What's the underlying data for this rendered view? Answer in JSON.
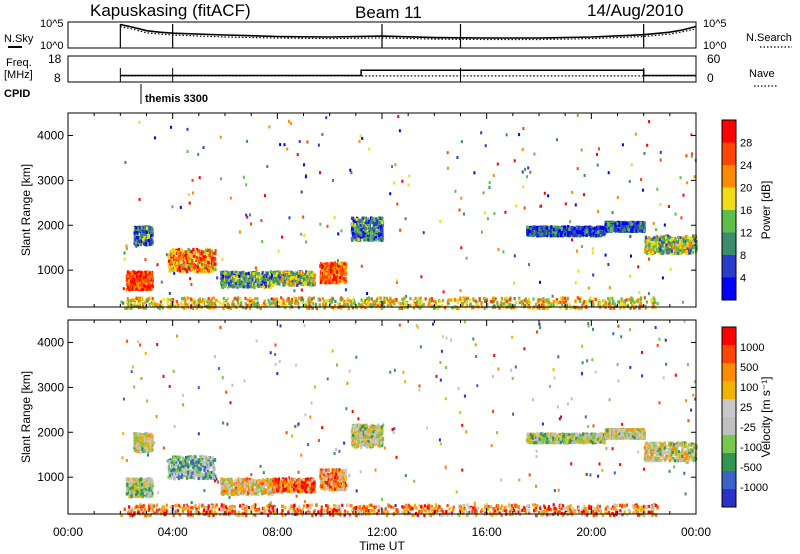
{
  "header": {
    "station": "Kapuskasing (fitACF)",
    "beam": "Beam 11",
    "date": "14/Aug/2010"
  },
  "panel_labels": {
    "nsky": "N.Sky",
    "freq_line1": "Freq.",
    "freq_line2": "[MHz]",
    "cpid": "CPID",
    "nsearch": "N.Search",
    "nave": "Nave",
    "cpid_value": "themis 3300"
  },
  "colors": {
    "power_scale": [
      "#0000ff",
      "#2d3cc8",
      "#3c8c6e",
      "#5fbe4b",
      "#f0dc14",
      "#ff8c00",
      "#ff4600",
      "#ff0000"
    ],
    "velocity_scale": [
      "#2832c8",
      "#3c64c8",
      "#329650",
      "#78c850",
      "#c0c0c0",
      "#c8c8c8",
      "#f0b400",
      "#ff8c00",
      "#ff4600",
      "#ff0000"
    ]
  },
  "chart_data": [
    {
      "type": "line",
      "name": "nsky-nsearch",
      "xlabel": "",
      "ylabel": "N.Sky",
      "ylim": [
        1,
        100000
      ],
      "log_scale": true,
      "yticks": [
        "10^5",
        "10^0"
      ],
      "right_label": "N.Search",
      "x_hours": [
        2.0,
        2.5,
        3.0,
        3.5,
        4.0,
        6.0,
        8.0,
        10.0,
        12.0,
        14.0,
        16.0,
        18.0,
        20.0,
        22.0,
        23.0,
        23.5,
        24.0
      ],
      "series": [
        {
          "name": "N.Sky",
          "values": [
            80000,
            20000,
            4000,
            2000,
            1200,
            500,
            250,
            200,
            300,
            150,
            120,
            120,
            200,
            600,
            2000,
            6000,
            30000
          ]
        },
        {
          "name": "N.Search",
          "values": [
            30000,
            8000,
            1500,
            800,
            500,
            200,
            120,
            90,
            130,
            70,
            60,
            60,
            90,
            250,
            800,
            2500,
            10000
          ]
        }
      ]
    },
    {
      "type": "line",
      "name": "freq-nave",
      "ylabel_left": "Freq. [MHz]",
      "yticks_left": [
        "18",
        "8"
      ],
      "yticks_right": [
        "60",
        "0"
      ],
      "right_label": "Nave",
      "series": [
        {
          "name": "Freq",
          "x_hours": [
            2.0,
            4.0,
            11.2,
            11.2,
            22.0,
            22.0,
            24.0
          ],
          "values": [
            10.5,
            10.5,
            10.5,
            12.5,
            12.5,
            10.5,
            10.5
          ]
        },
        {
          "name": "Nave",
          "x_hours": [
            2.0,
            24.0
          ],
          "values": [
            14,
            14
          ]
        }
      ]
    },
    {
      "type": "heatmap",
      "name": "power",
      "ylabel": "Slant Range [km]",
      "xlabel": "Time UT",
      "ylim": [
        180,
        4500
      ],
      "xlim_hours": [
        0,
        24
      ],
      "yticks": [
        1000,
        2000,
        3000,
        4000
      ],
      "colorbar_label": "Power [dB]",
      "colorbar_ticks": [
        "4",
        "8",
        "12",
        "16",
        "20",
        "24",
        "28"
      ],
      "echo_regions": [
        {
          "t0": 2.2,
          "t1": 3.2,
          "r0": 600,
          "r1": 1000,
          "level": 0.85
        },
        {
          "t0": 2.5,
          "t1": 3.2,
          "r0": 1600,
          "r1": 2000,
          "level": 0.3
        },
        {
          "t0": 3.8,
          "t1": 5.6,
          "r0": 1000,
          "r1": 1500,
          "level": 0.7
        },
        {
          "t0": 5.8,
          "t1": 7.8,
          "r0": 650,
          "r1": 1000,
          "level": 0.35
        },
        {
          "t0": 7.8,
          "t1": 9.4,
          "r0": 700,
          "r1": 1000,
          "level": 0.45
        },
        {
          "t0": 9.6,
          "t1": 10.6,
          "r0": 750,
          "r1": 1200,
          "level": 0.75
        },
        {
          "t0": 10.8,
          "t1": 12.0,
          "r0": 1700,
          "r1": 2200,
          "level": 0.3
        },
        {
          "t0": 17.5,
          "t1": 20.5,
          "r0": 1800,
          "r1": 2000,
          "level": 0.2
        },
        {
          "t0": 20.5,
          "t1": 22.0,
          "r0": 1900,
          "r1": 2100,
          "level": 0.25
        },
        {
          "t0": 22.0,
          "t1": 24.0,
          "r0": 1400,
          "r1": 1800,
          "level": 0.45
        },
        {
          "t0": 2.0,
          "t1": 22.5,
          "r0": 180,
          "r1": 420,
          "level": 0.6
        }
      ]
    },
    {
      "type": "heatmap",
      "name": "velocity",
      "ylabel": "Slant Range [km]",
      "xlabel": "Time UT",
      "ylim": [
        180,
        4500
      ],
      "xlim_hours": [
        0,
        24
      ],
      "yticks": [
        1000,
        2000,
        3000,
        4000
      ],
      "xticks": [
        "00:00",
        "04:00",
        "08:00",
        "12:00",
        "16:00",
        "20:00",
        "00:00"
      ],
      "colorbar_label": "Velocity [m s⁻¹]",
      "colorbar_ticks": [
        "1000",
        "500",
        "100",
        "25",
        "-25",
        "-100",
        "-500",
        "-1000"
      ],
      "echo_regions": [
        {
          "t0": 2.2,
          "t1": 3.2,
          "r0": 600,
          "r1": 1000,
          "level": 0.45
        },
        {
          "t0": 2.5,
          "t1": 3.2,
          "r0": 1600,
          "r1": 2000,
          "level": 0.5
        },
        {
          "t0": 3.8,
          "t1": 5.6,
          "r0": 1000,
          "r1": 1500,
          "level": 0.35
        },
        {
          "t0": 5.8,
          "t1": 7.8,
          "r0": 650,
          "r1": 1000,
          "level": 0.6
        },
        {
          "t0": 7.8,
          "t1": 9.4,
          "r0": 700,
          "r1": 1000,
          "level": 0.8
        },
        {
          "t0": 9.6,
          "t1": 10.6,
          "r0": 750,
          "r1": 1200,
          "level": 0.7
        },
        {
          "t0": 10.8,
          "t1": 12.0,
          "r0": 1700,
          "r1": 2200,
          "level": 0.5
        },
        {
          "t0": 17.5,
          "t1": 20.5,
          "r0": 1800,
          "r1": 2000,
          "level": 0.45
        },
        {
          "t0": 20.5,
          "t1": 22.0,
          "r0": 1900,
          "r1": 2100,
          "level": 0.5
        },
        {
          "t0": 22.0,
          "t1": 24.0,
          "r0": 1400,
          "r1": 1800,
          "level": 0.5
        },
        {
          "t0": 2.0,
          "t1": 22.5,
          "r0": 180,
          "r1": 420,
          "level": 0.75
        }
      ]
    }
  ]
}
